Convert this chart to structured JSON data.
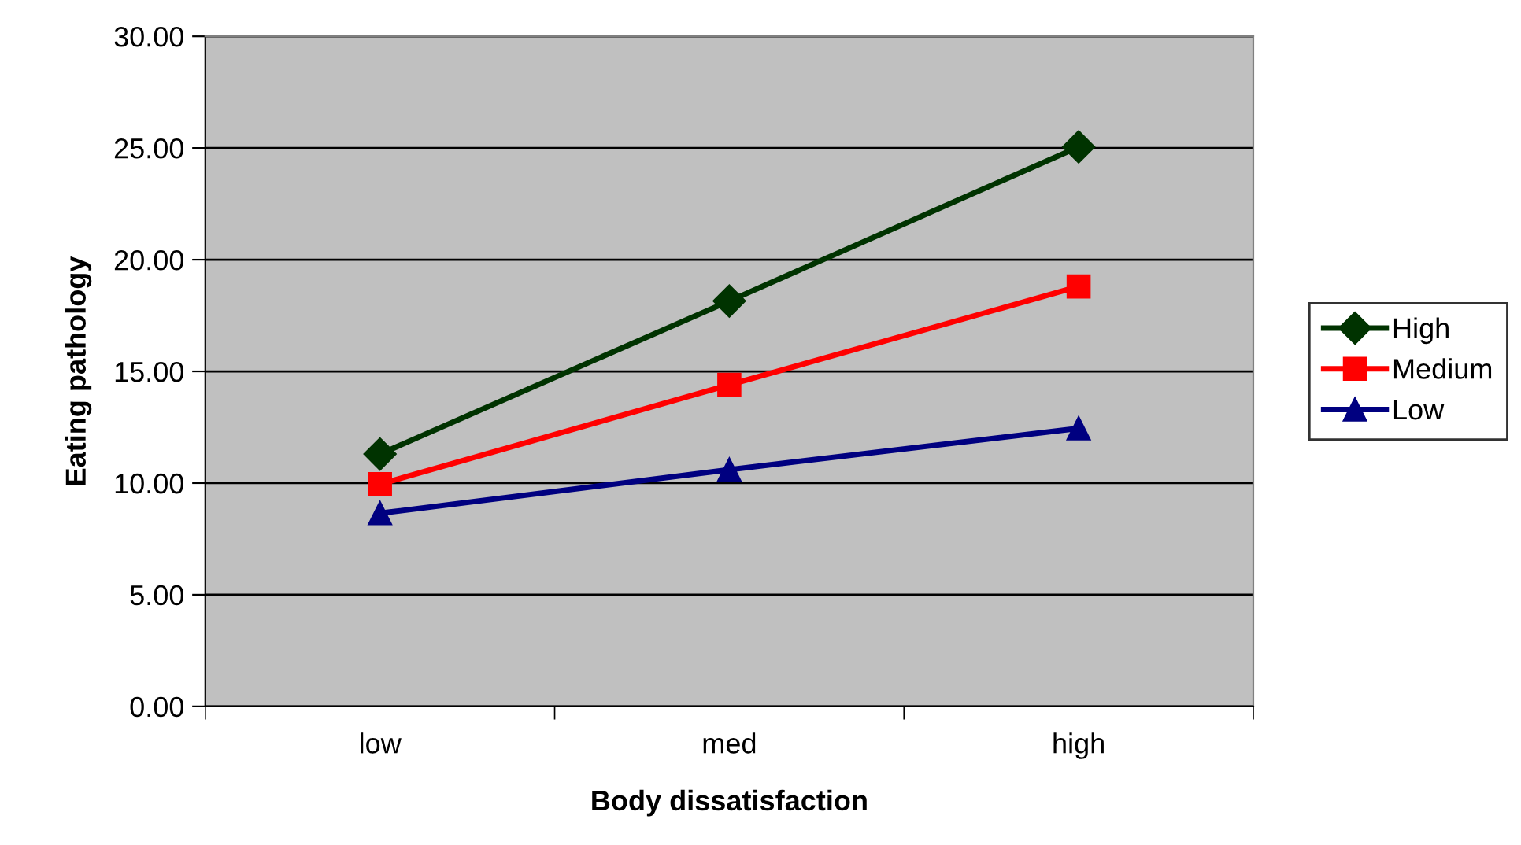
{
  "chart_data": {
    "type": "line",
    "xlabel": "Body dissatisfaction",
    "ylabel": "Eating pathology",
    "categories": [
      "low",
      "med",
      "high"
    ],
    "series": [
      {
        "name": "High",
        "color": "#003300",
        "values": [
          11.3,
          18.15,
          25.05
        ],
        "marker": "diamond"
      },
      {
        "name": "Medium",
        "color": "#ff0000",
        "values": [
          9.95,
          14.4,
          18.8
        ],
        "marker": "square"
      },
      {
        "name": "Low",
        "color": "#000080",
        "values": [
          8.65,
          10.6,
          12.45
        ],
        "marker": "triangle"
      }
    ],
    "ylim": [
      0,
      30
    ],
    "yticks": [
      {
        "value": 0,
        "label": "0.00"
      },
      {
        "value": 5,
        "label": "5.00"
      },
      {
        "value": 10,
        "label": "10.00"
      },
      {
        "value": 15,
        "label": "15.00"
      },
      {
        "value": 20,
        "label": "20.00"
      },
      {
        "value": 25,
        "label": "25.00"
      },
      {
        "value": 30,
        "label": "30.00"
      }
    ],
    "grid": "y",
    "legend": "right",
    "line_style": "solid"
  }
}
